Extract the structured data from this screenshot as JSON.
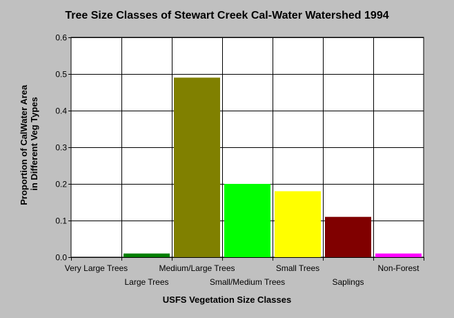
{
  "chart_data": {
    "type": "bar",
    "title": "Tree Size Classes of Stewart Creek Cal-Water Watershed 1994",
    "xlabel": "USFS Vegetation Size Classes",
    "ylabel": "Proportion of CalWater Area in Different Veg Types",
    "ylabel_lines": [
      "Proportion of CalWater Area",
      "in Different Veg Types"
    ],
    "categories": [
      "Very Large Trees",
      "Large Trees",
      "Medium/Large Trees",
      "Small/Medium Trees",
      "Small Trees",
      "Saplings",
      "Non-Forest"
    ],
    "values": [
      0.0,
      0.01,
      0.49,
      0.2,
      0.18,
      0.11,
      0.01
    ],
    "bar_colors": [
      "#000000",
      "#008000",
      "#808000",
      "#00ff00",
      "#ffff00",
      "#800000",
      "#ff00ff"
    ],
    "ylim": [
      0,
      0.6
    ],
    "yticks": [
      "0.0",
      "0.1",
      "0.2",
      "0.3",
      "0.4",
      "0.5",
      "0.6"
    ],
    "grid": true,
    "legend": "none"
  },
  "colors": {
    "background": "#c0c0c0",
    "plot_background": "#ffffff",
    "grid": "#000000"
  }
}
